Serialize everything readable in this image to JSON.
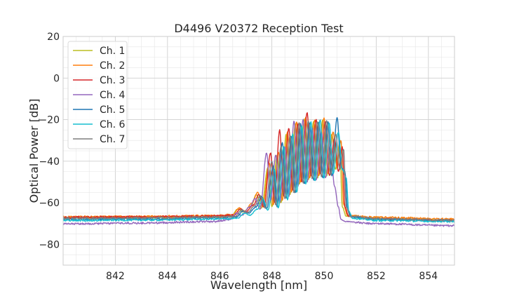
{
  "chart_data": {
    "type": "line",
    "title": "D4496 V20372 Reception Test",
    "xlabel": "Wavelength [nm]",
    "ylabel": "Optical Power [dB]",
    "xlim": [
      840.0,
      855.0
    ],
    "ylim": [
      -90,
      20
    ],
    "xticks": [
      842,
      844,
      846,
      848,
      850,
      852,
      854
    ],
    "yticks": [
      20,
      0,
      -20,
      -40,
      -60,
      -80
    ],
    "grid": true,
    "legend_position": "top-left",
    "series": [
      {
        "name": "Ch. 1",
        "color": "#bcbd22",
        "offset": -0.15,
        "points": [
          [
            840,
            -67.3
          ],
          [
            843,
            -67.2
          ],
          [
            846,
            -66.8
          ],
          [
            846.6,
            -66.2
          ],
          [
            846.85,
            -63.0
          ],
          [
            847.05,
            -64.5
          ],
          [
            847.35,
            -61.5
          ],
          [
            847.55,
            -56.0
          ],
          [
            847.75,
            -62.5
          ],
          [
            848.0,
            -43.0
          ],
          [
            848.15,
            -62.0
          ],
          [
            848.35,
            -37.0
          ],
          [
            848.5,
            -60.0
          ],
          [
            848.7,
            -27.0
          ],
          [
            848.85,
            -56.0
          ],
          [
            849.05,
            -22.0
          ],
          [
            849.2,
            -51.0
          ],
          [
            849.4,
            -19.5
          ],
          [
            849.55,
            -49.0
          ],
          [
            849.75,
            -21.0
          ],
          [
            849.9,
            -48.0
          ],
          [
            850.1,
            -20.0
          ],
          [
            850.25,
            -47.0
          ],
          [
            850.45,
            -27.0
          ],
          [
            850.6,
            -44.0
          ],
          [
            850.75,
            -31.0
          ],
          [
            850.85,
            -62.0
          ],
          [
            851.0,
            -66.5
          ],
          [
            852,
            -67.5
          ],
          [
            855,
            -68.2
          ]
        ]
      },
      {
        "name": "Ch. 2",
        "color": "#ff7f0e",
        "offset": -0.1,
        "points": [
          [
            840,
            -66.8
          ],
          [
            843,
            -66.6
          ],
          [
            846,
            -66.2
          ],
          [
            846.6,
            -65.8
          ],
          [
            846.85,
            -62.5
          ],
          [
            847.05,
            -64.0
          ],
          [
            847.35,
            -60.0
          ],
          [
            847.55,
            -55.0
          ],
          [
            847.75,
            -62.0
          ],
          [
            848.0,
            -41.0
          ],
          [
            848.15,
            -61.0
          ],
          [
            848.35,
            -35.5
          ],
          [
            848.5,
            -59.0
          ],
          [
            848.7,
            -26.0
          ],
          [
            848.85,
            -55.0
          ],
          [
            849.05,
            -21.0
          ],
          [
            849.2,
            -50.0
          ],
          [
            849.4,
            -19.0
          ],
          [
            849.55,
            -48.0
          ],
          [
            849.75,
            -20.0
          ],
          [
            849.9,
            -47.0
          ],
          [
            850.1,
            -19.0
          ],
          [
            850.25,
            -46.0
          ],
          [
            850.45,
            -26.0
          ],
          [
            850.6,
            -43.0
          ],
          [
            850.75,
            -30.0
          ],
          [
            850.85,
            -61.0
          ],
          [
            851.0,
            -66.0
          ],
          [
            852,
            -67.0
          ],
          [
            855,
            -67.8
          ]
        ]
      },
      {
        "name": "Ch. 3",
        "color": "#d62728",
        "offset": -0.05,
        "points": [
          [
            840,
            -67.0
          ],
          [
            843,
            -66.8
          ],
          [
            846,
            -66.4
          ],
          [
            846.6,
            -66.0
          ],
          [
            846.85,
            -63.0
          ],
          [
            847.05,
            -64.5
          ],
          [
            847.35,
            -61.0
          ],
          [
            847.55,
            -56.0
          ],
          [
            847.75,
            -62.0
          ],
          [
            848.0,
            -36.0
          ],
          [
            848.15,
            -60.0
          ],
          [
            848.35,
            -25.0
          ],
          [
            848.5,
            -57.0
          ],
          [
            848.7,
            -24.0
          ],
          [
            848.85,
            -54.0
          ],
          [
            849.05,
            -22.0
          ],
          [
            849.2,
            -50.0
          ],
          [
            849.4,
            -16.5
          ],
          [
            849.55,
            -47.0
          ],
          [
            849.75,
            -20.0
          ],
          [
            849.9,
            -46.0
          ],
          [
            850.1,
            -21.0
          ],
          [
            850.25,
            -47.0
          ],
          [
            850.45,
            -29.0
          ],
          [
            850.6,
            -45.0
          ],
          [
            850.75,
            -33.0
          ],
          [
            850.85,
            -62.0
          ],
          [
            851.0,
            -66.5
          ],
          [
            852,
            -67.8
          ],
          [
            855,
            -68.5
          ]
        ]
      },
      {
        "name": "Ch. 4",
        "color": "#9467bd",
        "offset": -0.2,
        "points": [
          [
            840,
            -70.2
          ],
          [
            843,
            -69.8
          ],
          [
            846,
            -69.0
          ],
          [
            846.6,
            -68.0
          ],
          [
            846.85,
            -65.0
          ],
          [
            847.05,
            -66.0
          ],
          [
            847.35,
            -62.0
          ],
          [
            847.55,
            -58.0
          ],
          [
            847.75,
            -63.0
          ],
          [
            848.0,
            -36.0
          ],
          [
            848.15,
            -59.0
          ],
          [
            848.35,
            -37.0
          ],
          [
            848.5,
            -60.0
          ],
          [
            848.7,
            -33.0
          ],
          [
            848.85,
            -57.0
          ],
          [
            849.05,
            -20.5
          ],
          [
            849.2,
            -52.0
          ],
          [
            849.4,
            -20.0
          ],
          [
            849.55,
            -50.0
          ],
          [
            849.75,
            -24.0
          ],
          [
            849.9,
            -49.0
          ],
          [
            850.1,
            -26.0
          ],
          [
            850.25,
            -48.0
          ],
          [
            850.45,
            -32.0
          ],
          [
            850.6,
            -52.0
          ],
          [
            850.75,
            -62.0
          ],
          [
            850.85,
            -68.0
          ],
          [
            851.0,
            -69.0
          ],
          [
            852,
            -70.0
          ],
          [
            855,
            -71.0
          ]
        ]
      },
      {
        "name": "Ch. 5",
        "color": "#1f77b4",
        "offset": 0.05,
        "points": [
          [
            840,
            -68.0
          ],
          [
            843,
            -67.8
          ],
          [
            846,
            -67.2
          ],
          [
            846.6,
            -66.8
          ],
          [
            846.85,
            -64.0
          ],
          [
            847.05,
            -65.0
          ],
          [
            847.35,
            -62.0
          ],
          [
            847.55,
            -57.0
          ],
          [
            847.75,
            -63.0
          ],
          [
            848.0,
            -42.0
          ],
          [
            848.15,
            -62.0
          ],
          [
            848.35,
            -31.0
          ],
          [
            848.5,
            -58.0
          ],
          [
            848.7,
            -28.0
          ],
          [
            848.85,
            -55.0
          ],
          [
            849.05,
            -22.0
          ],
          [
            849.2,
            -51.0
          ],
          [
            849.4,
            -21.5
          ],
          [
            849.55,
            -49.0
          ],
          [
            849.75,
            -21.5
          ],
          [
            849.9,
            -48.0
          ],
          [
            850.1,
            -21.0
          ],
          [
            850.25,
            -47.0
          ],
          [
            850.45,
            -19.0
          ],
          [
            850.6,
            -43.0
          ],
          [
            850.75,
            -45.0
          ],
          [
            850.85,
            -63.0
          ],
          [
            851.0,
            -67.0
          ],
          [
            852,
            -68.0
          ],
          [
            855,
            -68.8
          ]
        ]
      },
      {
        "name": "Ch. 6",
        "color": "#17becf",
        "offset": 0.1,
        "points": [
          [
            840,
            -68.5
          ],
          [
            843,
            -68.3
          ],
          [
            846,
            -67.8
          ],
          [
            846.6,
            -67.4
          ],
          [
            846.85,
            -65.0
          ],
          [
            847.05,
            -66.0
          ],
          [
            847.35,
            -63.0
          ],
          [
            847.55,
            -58.0
          ],
          [
            847.75,
            -63.5
          ],
          [
            848.0,
            -44.0
          ],
          [
            848.15,
            -62.5
          ],
          [
            848.35,
            -33.0
          ],
          [
            848.5,
            -58.5
          ],
          [
            848.7,
            -27.0
          ],
          [
            848.85,
            -55.0
          ],
          [
            849.05,
            -23.0
          ],
          [
            849.2,
            -51.0
          ],
          [
            849.4,
            -21.0
          ],
          [
            849.55,
            -49.5
          ],
          [
            849.75,
            -20.0
          ],
          [
            849.9,
            -48.0
          ],
          [
            850.1,
            -21.5
          ],
          [
            850.25,
            -46.0
          ],
          [
            850.45,
            -26.0
          ],
          [
            850.6,
            -44.0
          ],
          [
            850.75,
            -48.0
          ],
          [
            850.85,
            -64.0
          ],
          [
            851.0,
            -67.5
          ],
          [
            852,
            -68.5
          ],
          [
            855,
            -69.0
          ]
        ]
      },
      {
        "name": "Ch. 7",
        "color": "#7f7f7f",
        "offset": 0.0,
        "points": [
          [
            840,
            -67.5
          ],
          [
            843,
            -67.3
          ],
          [
            846,
            -66.9
          ],
          [
            846.6,
            -66.5
          ],
          [
            846.85,
            -63.5
          ],
          [
            847.05,
            -64.8
          ],
          [
            847.35,
            -61.5
          ],
          [
            847.55,
            -56.5
          ],
          [
            847.75,
            -62.5
          ],
          [
            848.0,
            -40.0
          ],
          [
            848.15,
            -61.0
          ],
          [
            848.35,
            -33.0
          ],
          [
            848.5,
            -58.0
          ],
          [
            848.7,
            -27.5
          ],
          [
            848.85,
            -55.5
          ],
          [
            849.05,
            -21.5
          ],
          [
            849.2,
            -50.5
          ],
          [
            849.4,
            -20.5
          ],
          [
            849.55,
            -48.5
          ],
          [
            849.75,
            -21.0
          ],
          [
            849.9,
            -47.5
          ],
          [
            850.1,
            -20.5
          ],
          [
            850.25,
            -46.5
          ],
          [
            850.45,
            -27.0
          ],
          [
            850.6,
            -44.0
          ],
          [
            850.75,
            -34.0
          ],
          [
            850.85,
            -62.0
          ],
          [
            851.0,
            -66.5
          ],
          [
            852,
            -67.6
          ],
          [
            855,
            -68.4
          ]
        ]
      }
    ]
  }
}
